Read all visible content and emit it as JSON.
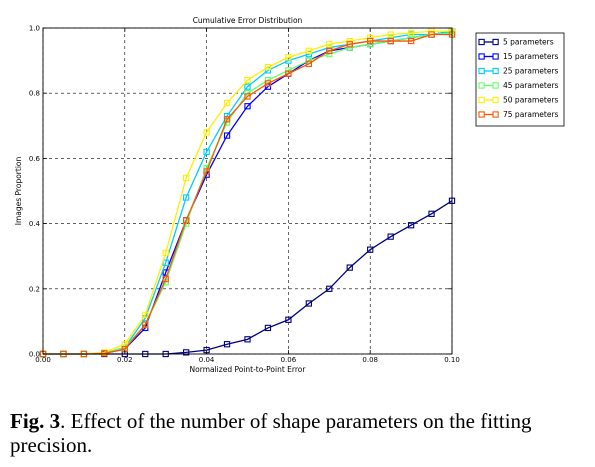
{
  "chart_data": {
    "type": "line",
    "title": "Cumulative Error Distribution",
    "xlabel": "Normalized Point-to-Point Error",
    "ylabel": "Images Proportion",
    "xlim": [
      0.0,
      0.1
    ],
    "ylim": [
      0.0,
      1.0
    ],
    "xticks": [
      "0.00",
      "0.02",
      "0.04",
      "0.06",
      "0.08",
      "0.10"
    ],
    "yticks": [
      "0.0",
      "0.2",
      "0.4",
      "0.6",
      "0.8",
      "1.0"
    ],
    "grid": true,
    "legend_position": "top-right",
    "x": [
      0.0,
      0.005,
      0.01,
      0.015,
      0.02,
      0.025,
      0.03,
      0.035,
      0.04,
      0.045,
      0.05,
      0.055,
      0.06,
      0.065,
      0.07,
      0.075,
      0.08,
      0.085,
      0.09,
      0.095,
      0.1
    ],
    "series": [
      {
        "name": "5 parameters",
        "color": "#000080",
        "values": [
          0.0,
          0.0,
          0.0,
          0.0,
          0.0,
          0.0,
          0.0,
          0.005,
          0.012,
          0.03,
          0.045,
          0.08,
          0.105,
          0.155,
          0.2,
          0.265,
          0.32,
          0.36,
          0.395,
          0.43,
          0.47
        ]
      },
      {
        "name": "15 parameters",
        "color": "#0000ff",
        "values": [
          0.0,
          0.0,
          0.0,
          0.002,
          0.015,
          0.08,
          0.25,
          0.41,
          0.55,
          0.67,
          0.76,
          0.82,
          0.86,
          0.9,
          0.93,
          0.94,
          0.95,
          0.96,
          0.97,
          0.98,
          0.99
        ]
      },
      {
        "name": "25 parameters",
        "color": "#00ccff",
        "values": [
          0.0,
          0.0,
          0.0,
          0.003,
          0.02,
          0.11,
          0.28,
          0.48,
          0.62,
          0.73,
          0.82,
          0.87,
          0.9,
          0.92,
          0.94,
          0.95,
          0.96,
          0.97,
          0.98,
          0.98,
          0.99
        ]
      },
      {
        "name": "45 parameters",
        "color": "#66ff66",
        "values": [
          0.0,
          0.0,
          0.0,
          0.002,
          0.02,
          0.09,
          0.22,
          0.4,
          0.57,
          0.71,
          0.8,
          0.84,
          0.87,
          0.9,
          0.92,
          0.94,
          0.95,
          0.96,
          0.97,
          0.98,
          0.985
        ]
      },
      {
        "name": "50 parameters",
        "color": "#ffee00",
        "values": [
          0.0,
          0.0,
          0.0,
          0.005,
          0.03,
          0.12,
          0.31,
          0.54,
          0.68,
          0.77,
          0.84,
          0.88,
          0.91,
          0.93,
          0.95,
          0.96,
          0.97,
          0.98,
          0.985,
          0.99,
          0.99
        ]
      },
      {
        "name": "75 parameters",
        "color": "#ff5500",
        "values": [
          0.0,
          0.0,
          0.0,
          0.002,
          0.015,
          0.09,
          0.23,
          0.41,
          0.56,
          0.72,
          0.79,
          0.83,
          0.86,
          0.89,
          0.93,
          0.95,
          0.96,
          0.96,
          0.96,
          0.98,
          0.98
        ]
      }
    ]
  },
  "caption": {
    "label": "Fig. 3",
    "text": ". Effect of the number of shape parameters on the fitting precision."
  }
}
